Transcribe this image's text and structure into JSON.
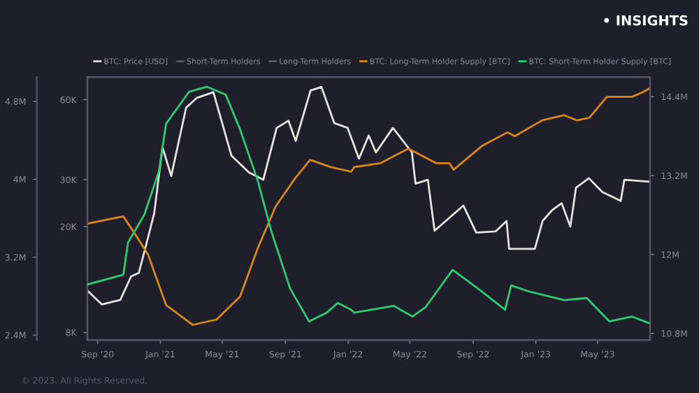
{
  "chart_data": {
    "type": "line",
    "annotations": [
      "• INSIGHTS",
      "© 2023. All Rights Reserved."
    ],
    "xlim": [
      "2020-08-12",
      "2023-08-11"
    ],
    "xticks": [
      {
        "value": "2020-09-01",
        "label": "Sep '20"
      },
      {
        "value": "2021-01-01",
        "label": "Jan '21"
      },
      {
        "value": "2021-05-01",
        "label": "May '21"
      },
      {
        "value": "2021-09-01",
        "label": "Sep '21"
      },
      {
        "value": "2022-01-01",
        "label": "Jan '22"
      },
      {
        "value": "2022-05-01",
        "label": "May '22"
      },
      {
        "value": "2022-09-01",
        "label": "Sep '22"
      },
      {
        "value": "2023-01-01",
        "label": "Jan '23"
      },
      {
        "value": "2023-05-01",
        "label": "May '23"
      }
    ],
    "log": "y",
    "ylim": [
      7500,
      73000
    ],
    "yticks": [
      {
        "value": 8000,
        "label": "8K"
      },
      {
        "value": 20000,
        "label": "20K"
      },
      {
        "value": 30000,
        "label": "30K"
      },
      {
        "value": 60000,
        "label": "60K"
      }
    ],
    "y2lim": [
      10.7,
      14.7
    ],
    "y2ticks": [
      {
        "value": 10.8,
        "label": "10.8M"
      },
      {
        "value": 12,
        "label": "12M"
      },
      {
        "value": 13.2,
        "label": "13.2M"
      },
      {
        "value": 14.4,
        "label": "14.4M"
      }
    ],
    "y3lim": [
      2.35,
      5.05
    ],
    "y3ticks": [
      {
        "value": 2.4,
        "label": "2.4M"
      },
      {
        "value": 3.2,
        "label": "3.2M"
      },
      {
        "value": 4,
        "label": "4M"
      },
      {
        "value": 4.8,
        "label": "4.8M"
      }
    ],
    "legend": "top left",
    "series": [
      {
        "name": "BTC: Price [USD]",
        "color": "#e8e4df",
        "x": [
          "2020-08-12",
          "2020-09-09",
          "2020-10-15",
          "2020-11-05",
          "2020-11-20",
          "2020-12-08",
          "2020-12-20",
          "2021-01-05",
          "2021-01-22",
          "2021-02-20",
          "2021-03-13",
          "2021-04-14",
          "2021-05-19",
          "2021-06-22",
          "2021-07-20",
          "2021-08-15",
          "2021-09-07",
          "2021-09-21",
          "2021-10-20",
          "2021-11-10",
          "2021-12-05",
          "2021-12-31",
          "2022-01-22",
          "2022-02-10",
          "2022-02-24",
          "2022-03-29",
          "2022-05-05",
          "2022-05-12",
          "2022-06-05",
          "2022-06-18",
          "2022-08-13",
          "2022-09-07",
          "2022-10-15",
          "2022-11-05",
          "2022-11-10",
          "2022-12-30",
          "2023-01-14",
          "2023-02-01",
          "2023-02-20",
          "2023-03-09",
          "2023-03-20",
          "2023-04-14",
          "2023-05-10",
          "2023-06-15",
          "2023-06-22",
          "2023-08-11"
        ],
        "values": [
          11500,
          10200,
          10600,
          13000,
          13400,
          18200,
          22500,
          39800,
          31000,
          56000,
          61000,
          64000,
          37000,
          32000,
          30000,
          47000,
          50000,
          42000,
          65000,
          67000,
          49000,
          47000,
          36000,
          44000,
          38000,
          47000,
          38000,
          29000,
          30000,
          19300,
          24000,
          19000,
          19200,
          21000,
          16500,
          16500,
          21000,
          23000,
          24500,
          20000,
          28000,
          30400,
          27000,
          25000,
          30000,
          29500
        ]
      },
      {
        "name": "Short-Term Holders",
        "color": "#5a5a66"
      },
      {
        "name": "Long-Term Holders",
        "color": "#5a5a66"
      },
      {
        "name": "BTC: Long-Term Holder Supply [BTC]",
        "color": "#d9861a",
        "axis": "y2",
        "x": [
          "2020-08-12",
          "2020-10-21",
          "2020-11-12",
          "2020-12-08",
          "2021-01-12",
          "2021-03-05",
          "2021-04-20",
          "2021-06-05",
          "2021-07-09",
          "2021-08-13",
          "2021-09-20",
          "2021-10-19",
          "2021-11-28",
          "2022-01-07",
          "2022-01-13",
          "2022-03-05",
          "2022-04-28",
          "2022-06-21",
          "2022-07-17",
          "2022-07-25",
          "2022-09-18",
          "2022-11-07",
          "2022-11-21",
          "2023-01-13",
          "2023-02-25",
          "2023-03-22",
          "2023-04-15",
          "2023-05-19",
          "2023-07-07",
          "2023-07-25",
          "2023-08-11"
        ],
        "values": [
          12.47,
          12.58,
          12.32,
          12.0,
          11.23,
          10.93,
          11.01,
          11.36,
          12.09,
          12.73,
          13.16,
          13.44,
          13.33,
          13.26,
          13.33,
          13.39,
          13.61,
          13.39,
          13.39,
          13.29,
          13.65,
          13.86,
          13.8,
          14.04,
          14.12,
          14.04,
          14.08,
          14.4,
          14.4,
          14.46,
          14.53
        ]
      },
      {
        "name": "BTC: Short-Term Holder Supply [BTC]",
        "color": "#2ecc71",
        "axis": "y3",
        "x": [
          "2020-08-12",
          "2020-10-21",
          "2020-10-30",
          "2020-12-01",
          "2020-12-29",
          "2021-01-12",
          "2021-02-26",
          "2021-04-01",
          "2021-05-08",
          "2021-06-05",
          "2021-07-09",
          "2021-08-05",
          "2021-09-10",
          "2021-10-17",
          "2021-11-20",
          "2021-12-12",
          "2022-01-07",
          "2022-01-13",
          "2022-03-31",
          "2022-05-06",
          "2022-06-01",
          "2022-07-23",
          "2022-09-10",
          "2022-11-02",
          "2022-11-14",
          "2022-12-17",
          "2023-02-25",
          "2023-04-10",
          "2023-05-24",
          "2023-07-07",
          "2023-08-11"
        ],
        "values": [
          2.92,
          3.02,
          3.35,
          3.64,
          4.08,
          4.57,
          4.9,
          4.95,
          4.87,
          4.51,
          3.99,
          3.46,
          2.88,
          2.54,
          2.63,
          2.73,
          2.66,
          2.63,
          2.7,
          2.59,
          2.69,
          3.07,
          2.88,
          2.66,
          2.91,
          2.85,
          2.76,
          2.78,
          2.54,
          2.59,
          2.52
        ]
      }
    ]
  }
}
